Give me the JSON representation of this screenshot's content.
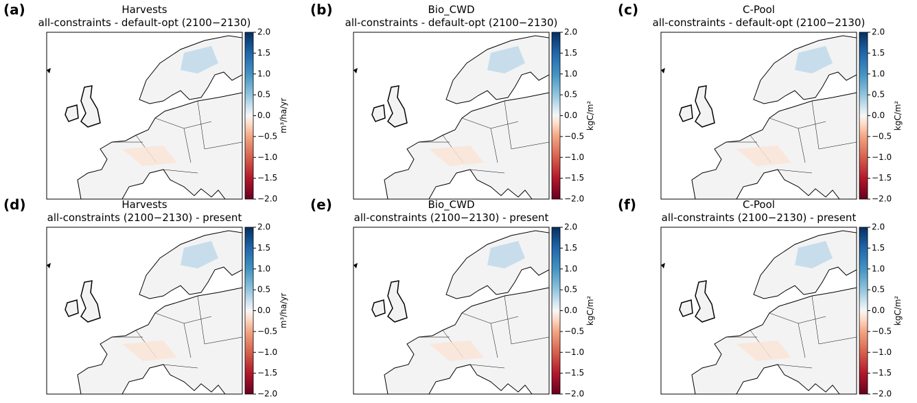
{
  "panels": [
    {
      "label": "(a)",
      "title": "Harvests",
      "subtitle": "all-constraints - default-opt (2100−2130)",
      "colorbar": {
        "label": "m³/ha/yr",
        "lim": [
          -2,
          2
        ],
        "ticks": [
          {
            "value": -2,
            "label": "−2.0"
          },
          {
            "value": -1.5,
            "label": "−1.5"
          },
          {
            "value": -1,
            "label": "−1.0"
          },
          {
            "value": -0.5,
            "label": "−0.5"
          },
          {
            "value": 0,
            "label": "0.0"
          },
          {
            "value": 0.5,
            "label": "0.5"
          },
          {
            "value": 1,
            "label": "1.0"
          },
          {
            "value": 1.5,
            "label": "1.5"
          },
          {
            "value": 2,
            "label": "2.0"
          }
        ]
      }
    },
    {
      "label": "(b)",
      "title": "Bio_CWD",
      "subtitle": "all-constraints - default-opt (2100−2130)",
      "colorbar": {
        "label": "kgC/m²",
        "lim": [
          -2,
          2
        ],
        "ticks": [
          {
            "value": -2,
            "label": "−2.0"
          },
          {
            "value": -1.5,
            "label": "−1.5"
          },
          {
            "value": -1,
            "label": "−1.0"
          },
          {
            "value": -0.5,
            "label": "−0.5"
          },
          {
            "value": 0,
            "label": "0.0"
          },
          {
            "value": 0.5,
            "label": "0.5"
          },
          {
            "value": 1,
            "label": "1.0"
          },
          {
            "value": 1.5,
            "label": "1.5"
          },
          {
            "value": 2,
            "label": "2.0"
          }
        ]
      }
    },
    {
      "label": "(c)",
      "title": "C-Pool",
      "subtitle": "all-constraints - default-opt (2100−2130)",
      "colorbar": {
        "label": "kgC/m²",
        "lim": [
          -2,
          2
        ],
        "ticks": [
          {
            "value": -2,
            "label": "−2.0"
          },
          {
            "value": -1.5,
            "label": "−1.5"
          },
          {
            "value": -1,
            "label": "−1.0"
          },
          {
            "value": -0.5,
            "label": "−0.5"
          },
          {
            "value": 0,
            "label": "0.0"
          },
          {
            "value": 0.5,
            "label": "0.5"
          },
          {
            "value": 1,
            "label": "1.0"
          },
          {
            "value": 1.5,
            "label": "1.5"
          },
          {
            "value": 2,
            "label": "2.0"
          }
        ]
      }
    },
    {
      "label": "(d)",
      "title": "Harvests",
      "subtitle": "all-constraints (2100−2130) - present",
      "colorbar": {
        "label": "m³/ha/yr",
        "lim": [
          -2,
          2
        ],
        "ticks": [
          {
            "value": -2,
            "label": "−2.0"
          },
          {
            "value": -1.5,
            "label": "−1.5"
          },
          {
            "value": -1,
            "label": "−1.0"
          },
          {
            "value": -0.5,
            "label": "−0.5"
          },
          {
            "value": 0,
            "label": "0.0"
          },
          {
            "value": 0.5,
            "label": "0.5"
          },
          {
            "value": 1,
            "label": "1.0"
          },
          {
            "value": 1.5,
            "label": "1.5"
          },
          {
            "value": 2,
            "label": "2.0"
          }
        ]
      }
    },
    {
      "label": "(e)",
      "title": "Bio_CWD",
      "subtitle": "all-constraints (2100−2130) - present",
      "colorbar": {
        "label": "kgC/m²",
        "lim": [
          -2,
          2
        ],
        "ticks": [
          {
            "value": -2,
            "label": "−2.0"
          },
          {
            "value": -1.5,
            "label": "−1.5"
          },
          {
            "value": -1,
            "label": "−1.0"
          },
          {
            "value": -0.5,
            "label": "−0.5"
          },
          {
            "value": 0,
            "label": "0.0"
          },
          {
            "value": 0.5,
            "label": "0.5"
          },
          {
            "value": 1,
            "label": "1.0"
          },
          {
            "value": 1.5,
            "label": "1.5"
          },
          {
            "value": 2,
            "label": "2.0"
          }
        ]
      }
    },
    {
      "label": "(f)",
      "title": "C-Pool",
      "subtitle": "all-constraints (2100−2130) - present",
      "colorbar": {
        "label": "kgC/m²",
        "lim": [
          -2,
          2
        ],
        "ticks": [
          {
            "value": -2,
            "label": "−2.0"
          },
          {
            "value": -1.5,
            "label": "−1.5"
          },
          {
            "value": -1,
            "label": "−1.0"
          },
          {
            "value": -0.5,
            "label": "−0.5"
          },
          {
            "value": 0,
            "label": "0.0"
          },
          {
            "value": 0.5,
            "label": "0.5"
          },
          {
            "value": 1,
            "label": "1.0"
          },
          {
            "value": 1.5,
            "label": "1.5"
          },
          {
            "value": 2,
            "label": "2.0"
          }
        ]
      }
    }
  ]
}
